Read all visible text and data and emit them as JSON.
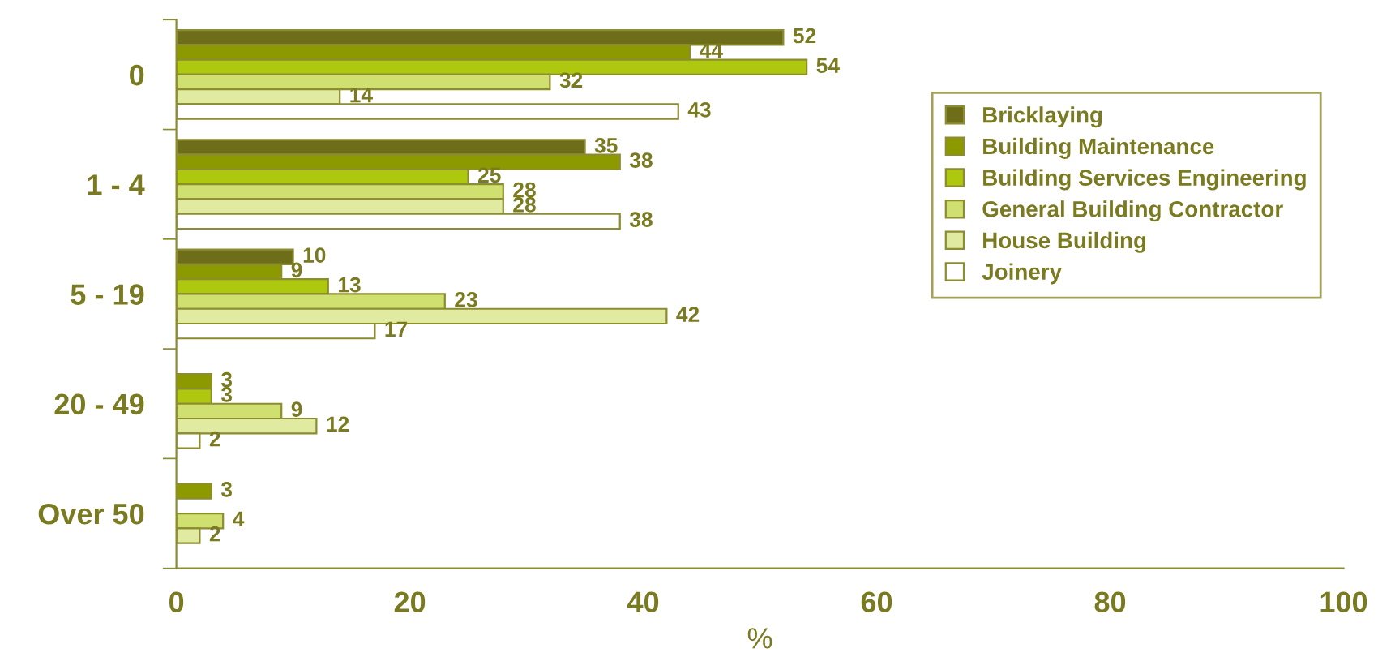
{
  "chart_data": {
    "type": "bar",
    "orientation": "horizontal",
    "xlabel": "%",
    "categories": [
      "0",
      "1 - 4",
      "5 - 19",
      "20 - 49",
      "Over 50"
    ],
    "series": [
      {
        "name": "Bricklaying",
        "color": "#6e6e1a",
        "values": [
          52,
          35,
          10,
          null,
          null
        ]
      },
      {
        "name": "Building Maintenance",
        "color": "#8c9a00",
        "values": [
          44,
          38,
          9,
          3,
          3
        ]
      },
      {
        "name": "Building Services Engineering",
        "color": "#adc80f",
        "values": [
          54,
          25,
          13,
          3,
          null
        ]
      },
      {
        "name": "General Building Contractor",
        "color": "#d0e070",
        "values": [
          32,
          28,
          23,
          9,
          4
        ]
      },
      {
        "name": "House Building",
        "color": "#e0eaa0",
        "values": [
          14,
          28,
          42,
          12,
          2
        ]
      },
      {
        "name": "Joinery",
        "color": "#ffffff",
        "values": [
          43,
          38,
          17,
          2,
          null
        ]
      }
    ],
    "xlim": [
      0,
      100
    ],
    "xticks": [
      0,
      20,
      40,
      60,
      80,
      100
    ],
    "grid": false,
    "legend": "right",
    "data_labels": true
  }
}
